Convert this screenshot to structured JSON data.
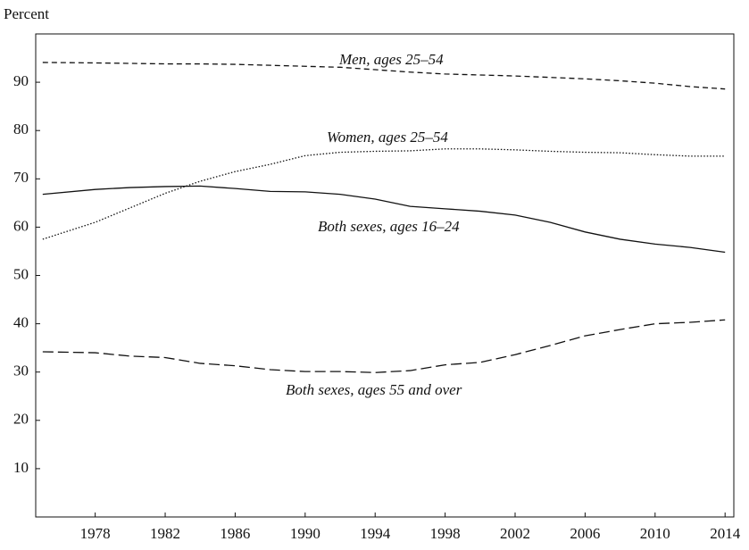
{
  "chart_data": {
    "type": "line",
    "y_label": "Percent",
    "x": [
      1975,
      1978,
      1980,
      1982,
      1984,
      1986,
      1988,
      1990,
      1992,
      1994,
      1996,
      1998,
      2000,
      2002,
      2004,
      2006,
      2008,
      2010,
      2012,
      2014
    ],
    "xlim": [
      1974.6,
      2014.5
    ],
    "xticks": [
      1978,
      1982,
      1986,
      1990,
      1994,
      1998,
      2002,
      2006,
      2010,
      2014
    ],
    "ylim": [
      0,
      100
    ],
    "yticks": [
      10,
      20,
      30,
      40,
      50,
      60,
      70,
      80,
      90
    ],
    "grid": false,
    "series": [
      {
        "name": "Men, ages 25–54",
        "color": "#111111",
        "line_style": "dashed",
        "values": [
          94.1,
          94,
          93.9,
          93.8,
          93.8,
          93.7,
          93.5,
          93.3,
          93.1,
          92.6,
          92.1,
          91.7,
          91.5,
          91.3,
          91,
          90.7,
          90.3,
          89.8,
          89.1,
          88.6
        ]
      },
      {
        "name": "Women, ages 25–54",
        "color": "#111111",
        "line_style": "dotted",
        "values": [
          57.5,
          61,
          64,
          67,
          69.5,
          71.5,
          73,
          74.8,
          75.5,
          75.7,
          75.8,
          76.2,
          76.2,
          76,
          75.7,
          75.5,
          75.4,
          75,
          74.7,
          74.7
        ]
      },
      {
        "name": "Both sexes, ages 16–24",
        "color": "#111111",
        "line_style": "solid",
        "values": [
          66.8,
          67.8,
          68.2,
          68.4,
          68.5,
          68,
          67.4,
          67.3,
          66.8,
          65.8,
          64.3,
          63.8,
          63.3,
          62.5,
          61,
          59,
          57.5,
          56.5,
          55.8,
          54.8
        ]
      },
      {
        "name": "Both sexes, ages 55 and over",
        "color": "#111111",
        "line_style": "longdash",
        "values": [
          34.2,
          34,
          33.3,
          33,
          31.8,
          31.3,
          30.5,
          30.1,
          30.1,
          29.9,
          30.3,
          31.5,
          32,
          33.6,
          35.5,
          37.5,
          38.8,
          40,
          40.3,
          40.8
        ]
      }
    ]
  }
}
